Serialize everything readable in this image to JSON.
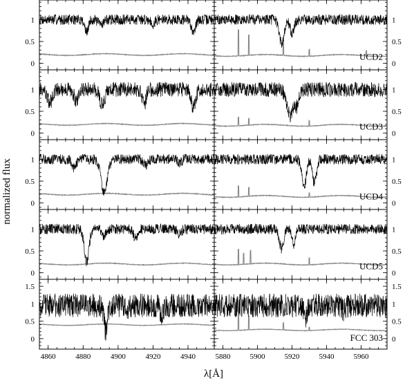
{
  "chart_data": {
    "type": "line",
    "xlabel": "λ[Å]",
    "ylabel": "normalized flux",
    "wavelength_windows": [
      {
        "xlim": [
          4855,
          4955
        ],
        "xticks": [
          4860,
          4880,
          4900,
          4920,
          4940
        ]
      },
      {
        "xlim": [
          5875,
          5975
        ],
        "xticks": [
          5880,
          5900,
          5920,
          5940,
          5960
        ]
      }
    ],
    "series_colors": {
      "spectrum": "#000000",
      "error": "#888888"
    },
    "panels": [
      {
        "label": "UCD2",
        "ylim": [
          -0.15,
          1.45
        ],
        "yticks": [
          "0",
          "0.5",
          "1"
        ],
        "noise": 0.07,
        "continuum": 1.0,
        "left": {
          "error_level": 0.2,
          "lines": [
            [
              4882,
              0.3,
              1.0
            ],
            [
              4890,
              0.1,
              1.5
            ],
            [
              4920,
              0.1,
              1.0
            ],
            [
              4943,
              0.25,
              1.3
            ]
          ]
        },
        "right": {
          "error_level": 0.18,
          "lines": [
            [
              5914,
              0.55,
              1.4
            ],
            [
              5920,
              0.3,
              1.2
            ]
          ],
          "sky_spikes": [
            [
              5889,
              0.6
            ],
            [
              5895,
              0.45
            ],
            [
              5915,
              0.3
            ],
            [
              5930,
              0.15
            ],
            [
              5963,
              0.12
            ]
          ]
        }
      },
      {
        "label": "UCD3",
        "ylim": [
          -0.15,
          1.45
        ],
        "yticks": [
          "0",
          "0.5",
          "1"
        ],
        "noise": 0.1,
        "continuum": 1.0,
        "left": {
          "error_level": 0.2,
          "lines": [
            [
              4861,
              0.3,
              1.5
            ],
            [
              4876,
              0.25,
              1.2
            ],
            [
              4891,
              0.35,
              1.5
            ],
            [
              4915,
              0.35,
              1.0
            ],
            [
              4943,
              0.4,
              1.3
            ]
          ]
        },
        "right": {
          "error_level": 0.18,
          "lines": [
            [
              5919,
              0.6,
              2.0
            ],
            [
              5923,
              0.3,
              1.2
            ]
          ],
          "sky_spikes": [
            [
              5889,
              0.2
            ],
            [
              5895,
              0.15
            ],
            [
              5930,
              0.12
            ]
          ]
        }
      },
      {
        "label": "UCD4",
        "ylim": [
          -0.15,
          1.45
        ],
        "yticks": [
          "0",
          "0.5",
          "1"
        ],
        "noise": 0.07,
        "continuum": 1.0,
        "left": {
          "error_level": 0.2,
          "lines": [
            [
              4875,
              0.2,
              1.2
            ],
            [
              4892,
              0.75,
              1.8
            ],
            [
              4916,
              0.15,
              1.2
            ],
            [
              4935,
              0.1,
              1.0
            ]
          ]
        },
        "right": {
          "error_level": 0.15,
          "lines": [
            [
              5927,
              0.6,
              1.3
            ],
            [
              5933,
              0.55,
              1.2
            ]
          ],
          "sky_spikes": [
            [
              5889,
              0.25
            ],
            [
              5895,
              0.2
            ],
            [
              5930,
              0.1
            ]
          ]
        }
      },
      {
        "label": "UCD5",
        "ylim": [
          -0.15,
          1.45
        ],
        "yticks": [
          "0",
          "0.5",
          "1"
        ],
        "noise": 0.07,
        "continuum": 1.0,
        "left": {
          "error_level": 0.2,
          "lines": [
            [
              4882,
              0.75,
              1.3
            ],
            [
              4892,
              0.15,
              1.0
            ],
            [
              4910,
              0.2,
              1.2
            ],
            [
              4935,
              0.12,
              1.0
            ]
          ]
        },
        "right": {
          "error_level": 0.2,
          "lines": [
            [
              5914,
              0.45,
              1.2
            ],
            [
              5921,
              0.35,
              1.0
            ]
          ],
          "sky_spikes": [
            [
              5889,
              0.35
            ],
            [
              5892,
              0.25
            ],
            [
              5896,
              0.3
            ],
            [
              5930,
              0.15
            ]
          ]
        }
      },
      {
        "label": "FCC 303",
        "ylim": [
          -0.3,
          1.7
        ],
        "yticks": [
          "0",
          "0.5",
          "1",
          "1.5"
        ],
        "noise": 0.2,
        "continuum": 0.95,
        "left": {
          "error_level": 0.4,
          "lines": [
            [
              4893,
              0.75,
              1.0
            ],
            [
              4905,
              0.2,
              1.0
            ],
            [
              4925,
              0.25,
              1.0
            ]
          ]
        },
        "right": {
          "error_level": 0.25,
          "lines": [
            [
              5928,
              0.3,
              1.0
            ],
            [
              5950,
              0.15,
              1.0
            ]
          ],
          "sky_spikes": [
            [
              5889,
              0.5
            ],
            [
              5895,
              0.4
            ],
            [
              5915,
              0.2
            ],
            [
              5930,
              0.1
            ]
          ]
        }
      }
    ]
  }
}
